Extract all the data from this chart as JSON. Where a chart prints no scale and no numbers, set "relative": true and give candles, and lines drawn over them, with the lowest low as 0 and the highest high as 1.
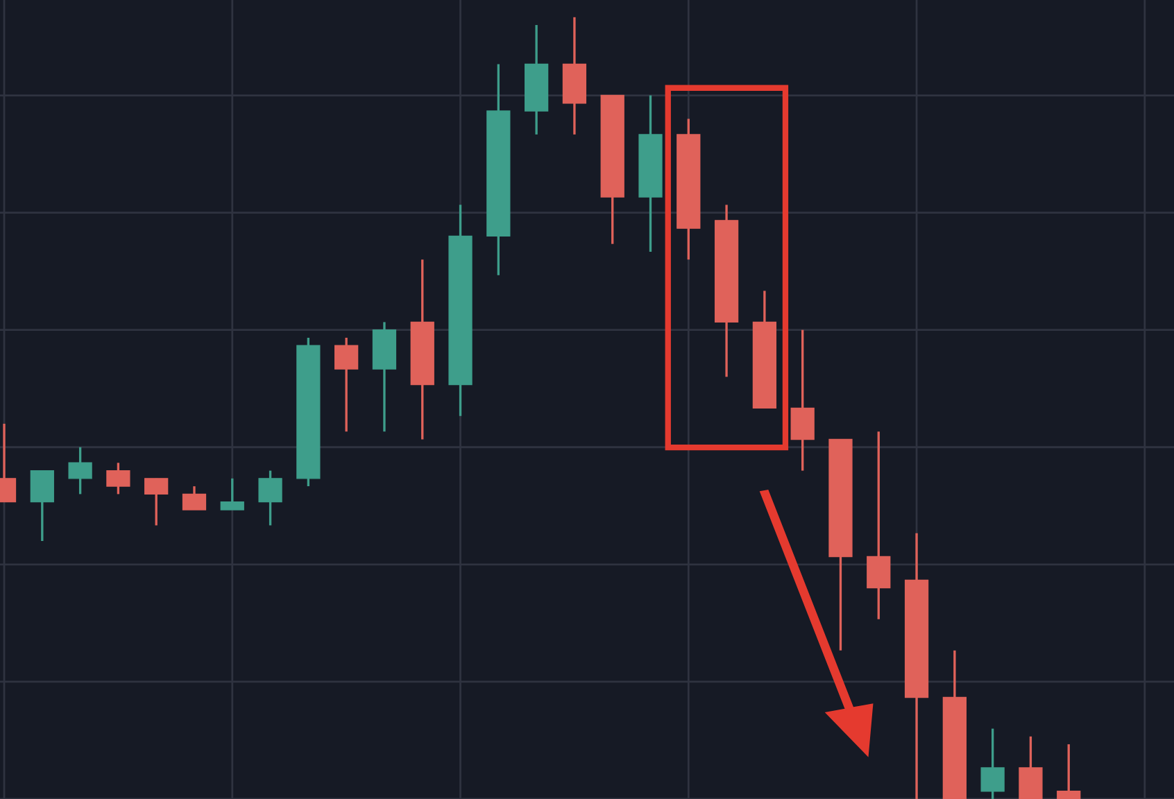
{
  "chart_data": {
    "type": "candlestick",
    "relative": true,
    "grid": true,
    "categories": [
      null,
      null,
      null,
      null,
      null,
      null,
      null,
      null,
      null,
      null,
      null,
      null,
      null,
      null,
      null,
      null,
      null,
      null,
      null,
      null,
      null,
      null,
      null,
      null,
      null,
      null,
      null,
      null,
      null
    ],
    "ohlc": [
      [
        0.41,
        0.48,
        0.38,
        0.38
      ],
      [
        0.38,
        0.42,
        0.33,
        0.42
      ],
      [
        0.41,
        0.45,
        0.39,
        0.43
      ],
      [
        0.42,
        0.43,
        0.39,
        0.4
      ],
      [
        0.41,
        0.41,
        0.35,
        0.39
      ],
      [
        0.39,
        0.4,
        0.37,
        0.37
      ],
      [
        0.37,
        0.41,
        0.37,
        0.38
      ],
      [
        0.38,
        0.42,
        0.35,
        0.41
      ],
      [
        0.41,
        0.59,
        0.4,
        0.58
      ],
      [
        0.58,
        0.59,
        0.47,
        0.55
      ],
      [
        0.55,
        0.61,
        0.47,
        0.6
      ],
      [
        0.61,
        0.69,
        0.46,
        0.53
      ],
      [
        0.53,
        0.76,
        0.49,
        0.72
      ],
      [
        0.72,
        0.94,
        0.67,
        0.88
      ],
      [
        0.88,
        0.99,
        0.85,
        0.94
      ],
      [
        0.94,
        1.0,
        0.85,
        0.89
      ],
      [
        0.9,
        0.9,
        0.71,
        0.77
      ],
      [
        0.77,
        0.9,
        0.7,
        0.85
      ],
      [
        0.85,
        0.87,
        0.69,
        0.73
      ],
      [
        0.74,
        0.76,
        0.54,
        0.61
      ],
      [
        0.61,
        0.65,
        0.5,
        0.5
      ],
      [
        0.5,
        0.6,
        0.42,
        0.46
      ],
      [
        0.46,
        0.46,
        0.19,
        0.31
      ],
      [
        0.31,
        0.47,
        0.23,
        0.27
      ],
      [
        0.28,
        0.34,
        0.0,
        0.13
      ],
      [
        0.13,
        0.19,
        0.0,
        0.0
      ],
      [
        0.01,
        0.09,
        0.0,
        0.04
      ],
      [
        0.04,
        0.08,
        0.0,
        0.0
      ],
      [
        0.01,
        0.07,
        0.0,
        0.0
      ]
    ],
    "colors": [
      "#e0625a",
      "#3e9e8b",
      "#3e9e8b",
      "#e0625a",
      "#e0625a",
      "#e0625a",
      "#3e9e8b",
      "#3e9e8b",
      "#3e9e8b",
      "#e0625a",
      "#3e9e8b",
      "#e0625a",
      "#3e9e8b",
      "#3e9e8b",
      "#3e9e8b",
      "#e0625a",
      "#e0625a",
      "#3e9e8b",
      "#e0625a",
      "#e0625a",
      "#e0625a",
      "#e0625a",
      "#e0625a",
      "#e0625a",
      "#e0625a",
      "#e0625a",
      "#3e9e8b",
      "#e0625a",
      "#e0625a"
    ]
  }
}
